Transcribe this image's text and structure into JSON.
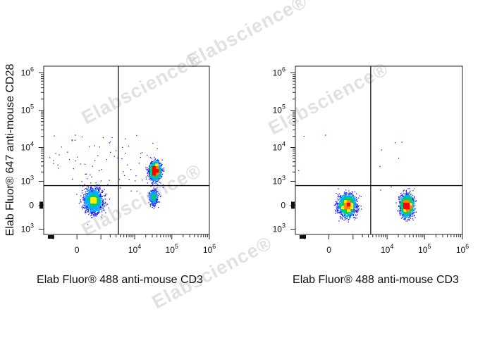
{
  "watermark_text": "Elabscience®",
  "chart_data": [
    {
      "type": "scatter",
      "title": "",
      "xlabel": "Elab Fluor® 488 anti-mouse CD3",
      "ylabel": "Elab Fluor® 647 anti-mouse CD28",
      "x_scale": "biexponential",
      "y_scale": "biexponential",
      "xlim": [
        -2000,
        1000000
      ],
      "ylim": [
        -1500,
        1500000
      ],
      "x_ticks": [
        {
          "value": 0,
          "base": "0",
          "exp": ""
        },
        {
          "value": 10000,
          "base": "10",
          "exp": "4"
        },
        {
          "value": 100000,
          "base": "10",
          "exp": "5"
        },
        {
          "value": 1000000,
          "base": "10",
          "exp": "6"
        }
      ],
      "y_ticks": [
        {
          "value": -1000,
          "base": "10",
          "exp": "3"
        },
        {
          "value": 0,
          "base": "0",
          "exp": ""
        },
        {
          "value": 1000,
          "base": "10",
          "exp": "3"
        },
        {
          "value": 10000,
          "base": "10",
          "exp": "4"
        },
        {
          "value": 100000,
          "base": "10",
          "exp": "5"
        },
        {
          "value": 1000000,
          "base": "10",
          "exp": "6"
        }
      ],
      "quadrant_gate": {
        "x": 3500,
        "y": 700
      },
      "populations": [
        {
          "x_center": 500,
          "x_spread": 500,
          "y_center": 100,
          "y_spread": 350,
          "events": 1800
        },
        {
          "x_center": 35000,
          "x_spread": 12000,
          "y_center": 2200,
          "y_spread": 1500,
          "events": 2100
        },
        {
          "x_center": 32000,
          "x_spread": 8000,
          "y_center": 200,
          "y_spread": 250,
          "events": 450
        }
      ],
      "grid": false,
      "legend": "none",
      "density_colors": [
        "#1a1aff",
        "#00aaff",
        "#00cc66",
        "#ffee00",
        "#ff8800",
        "#ff0000"
      ]
    },
    {
      "type": "scatter",
      "title": "",
      "xlabel": "Elab Fluor® 488 anti-mouse CD3",
      "ylabel": "",
      "x_scale": "biexponential",
      "y_scale": "biexponential",
      "xlim": [
        -2000,
        1000000
      ],
      "ylim": [
        -1500,
        1500000
      ],
      "x_ticks": [
        {
          "value": 0,
          "base": "0",
          "exp": ""
        },
        {
          "value": 10000,
          "base": "10",
          "exp": "4"
        },
        {
          "value": 100000,
          "base": "10",
          "exp": "5"
        },
        {
          "value": 1000000,
          "base": "10",
          "exp": "6"
        }
      ],
      "y_ticks": [
        {
          "value": -1000,
          "base": "10",
          "exp": "3"
        },
        {
          "value": 0,
          "base": "0",
          "exp": ""
        },
        {
          "value": 1000,
          "base": "10",
          "exp": "3"
        },
        {
          "value": 10000,
          "base": "10",
          "exp": "4"
        },
        {
          "value": 100000,
          "base": "10",
          "exp": "5"
        },
        {
          "value": 1000000,
          "base": "10",
          "exp": "6"
        }
      ],
      "quadrant_gate": {
        "x": 3500,
        "y": 700
      },
      "populations": [
        {
          "x_center": 600,
          "x_spread": 550,
          "y_center": 0,
          "y_spread": 230,
          "events": 1900
        },
        {
          "x_center": 33000,
          "x_spread": 14000,
          "y_center": 0,
          "y_spread": 230,
          "events": 1900
        }
      ],
      "grid": false,
      "legend": "none",
      "density_colors": [
        "#1a1aff",
        "#00aaff",
        "#00cc66",
        "#ffee00",
        "#ff8800",
        "#ff0000"
      ]
    }
  ]
}
